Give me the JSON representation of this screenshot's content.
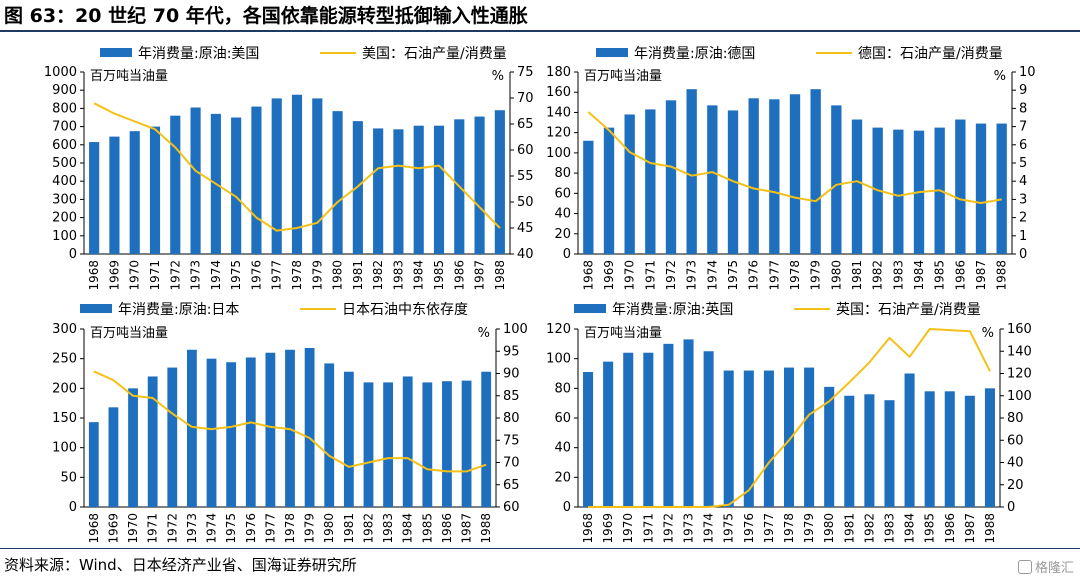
{
  "title": "图 63：20 世纪 70 年代，各国依靠能源转型抵御输入性通胀",
  "source": "资料来源：Wind、日本经济产业省、国海证券研究所",
  "watermark": "格隆汇",
  "colors": {
    "bar": "#1f6fbf",
    "line": "#f5c116",
    "axis": "#000000",
    "rule": "#1f3864"
  },
  "chart_data": [
    {
      "type": "bar+line",
      "categories": [
        "1968",
        "1969",
        "1970",
        "1971",
        "1972",
        "1973",
        "1974",
        "1975",
        "1976",
        "1977",
        "1978",
        "1979",
        "1980",
        "1981",
        "1982",
        "1983",
        "1984",
        "1985",
        "1986",
        "1987",
        "1988"
      ],
      "legend": {
        "bar": "年消费量:原油:美国",
        "line": "美国：石油产量/消费量"
      },
      "left_unit": "百万吨当油量",
      "right_unit": "%",
      "left_axis": {
        "min": 0,
        "max": 1000,
        "step": 100
      },
      "right_axis": {
        "min": 40,
        "max": 75,
        "step": 5
      },
      "bar_values": [
        615,
        645,
        675,
        700,
        760,
        805,
        770,
        750,
        810,
        855,
        875,
        855,
        785,
        730,
        690,
        685,
        705,
        705,
        740,
        755,
        790
      ],
      "line_values": [
        69,
        67,
        65.5,
        64,
        60.5,
        56,
        53.5,
        51,
        47,
        44.5,
        45,
        46,
        50,
        53,
        56.5,
        57,
        56.5,
        57,
        53,
        49,
        45
      ]
    },
    {
      "type": "bar+line",
      "categories": [
        "1968",
        "1969",
        "1970",
        "1971",
        "1972",
        "1973",
        "1974",
        "1975",
        "1976",
        "1977",
        "1978",
        "1979",
        "1980",
        "1981",
        "1982",
        "1983",
        "1984",
        "1985",
        "1986",
        "1987",
        "1988"
      ],
      "legend": {
        "bar": "年消费量:原油:德国",
        "line": "德国：石油产量/消费量"
      },
      "left_unit": "百万吨当油量",
      "right_unit": "%",
      "left_axis": {
        "min": 0,
        "max": 180,
        "step": 20
      },
      "right_axis": {
        "min": 0,
        "max": 10,
        "step": 1
      },
      "bar_values": [
        112,
        125,
        138,
        143,
        152,
        163,
        147,
        142,
        154,
        153,
        158,
        163,
        147,
        133,
        125,
        123,
        122,
        125,
        133,
        129,
        129
      ],
      "line_values": [
        7.8,
        6.8,
        5.6,
        5.0,
        4.8,
        4.3,
        4.5,
        4.0,
        3.6,
        3.4,
        3.1,
        2.9,
        3.8,
        4.0,
        3.5,
        3.2,
        3.4,
        3.5,
        3.0,
        2.8,
        3.0
      ]
    },
    {
      "type": "bar+line",
      "categories": [
        "1968",
        "1969",
        "1970",
        "1971",
        "1972",
        "1973",
        "1974",
        "1975",
        "1976",
        "1977",
        "1978",
        "1979",
        "1980",
        "1981",
        "1982",
        "1983",
        "1984",
        "1985",
        "1986",
        "1987",
        "1988"
      ],
      "legend": {
        "bar": "年消费量:原油:日本",
        "line": "日本石油中东依存度"
      },
      "left_unit": "百万吨当油量",
      "right_unit": "%",
      "left_axis": {
        "min": 0,
        "max": 300,
        "step": 50
      },
      "right_axis": {
        "min": 60,
        "max": 100,
        "step": 5
      },
      "bar_values": [
        143,
        168,
        200,
        220,
        235,
        265,
        250,
        244,
        252,
        260,
        265,
        268,
        242,
        228,
        210,
        210,
        220,
        210,
        212,
        213,
        228
      ],
      "line_values": [
        90.5,
        88.5,
        85,
        84.5,
        81,
        78,
        77.5,
        78,
        79,
        78,
        77.5,
        75.5,
        71.5,
        69,
        70,
        71,
        71,
        68.5,
        68,
        68,
        69.5
      ]
    },
    {
      "type": "bar+line",
      "categories": [
        "1968",
        "1969",
        "1970",
        "1971",
        "1972",
        "1973",
        "1974",
        "1975",
        "1976",
        "1977",
        "1978",
        "1979",
        "1980",
        "1981",
        "1982",
        "1983",
        "1984",
        "1985",
        "1986",
        "1987",
        "1988"
      ],
      "legend": {
        "bar": "年消费量:原油:英国",
        "line": "英国：石油产量/消费量"
      },
      "left_unit": "百万吨当油量",
      "right_unit": "%",
      "left_axis": {
        "min": 0,
        "max": 120,
        "step": 20
      },
      "right_axis": {
        "min": 0,
        "max": 160,
        "step": 20
      },
      "bar_values": [
        91,
        98,
        104,
        104,
        110,
        113,
        105,
        92,
        92,
        92,
        94,
        94,
        81,
        75,
        76,
        72,
        90,
        78,
        78,
        75,
        80
      ],
      "line_values": [
        0,
        0,
        0,
        0,
        0,
        0,
        0,
        2,
        15,
        40,
        60,
        83,
        95,
        112,
        130,
        152,
        135,
        160,
        159,
        158,
        122
      ]
    }
  ]
}
